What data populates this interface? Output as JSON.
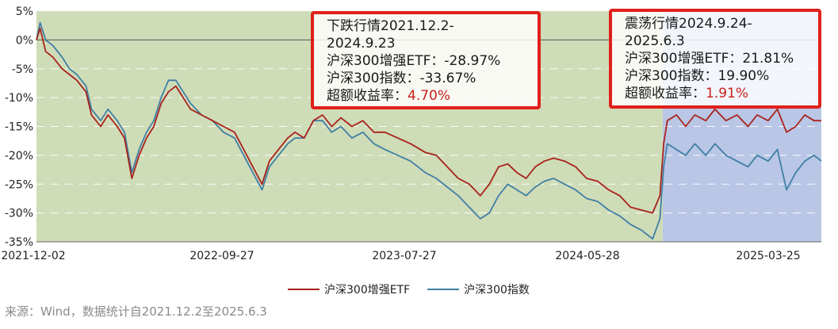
{
  "chart_data": {
    "type": "line",
    "x_tick_labels": [
      "2021-12-02",
      "2022-09-27",
      "2023-07-27",
      "2024-05-28",
      "2025-03-25"
    ],
    "y_tick_labels": [
      "5%",
      "0%",
      "-5%",
      "-10%",
      "-15%",
      "-20%",
      "-25%",
      "-30%",
      "-35%"
    ],
    "ylim": [
      -35,
      5
    ],
    "grid": true,
    "legend_placement": "bottom",
    "shaded_regions": [
      {
        "start": "2021-12-02",
        "end": "2024-09-23",
        "color": "#cfdcb8"
      },
      {
        "start": "2024-09-24",
        "end": "2025-06-03",
        "color": "#b9c6e6"
      }
    ],
    "series": [
      {
        "name": "沪深300增强ETF",
        "color": "#a8221b",
        "points": [
          [
            0,
            0
          ],
          [
            2,
            2
          ],
          [
            5,
            -2
          ],
          [
            9,
            -3
          ],
          [
            14,
            -5
          ],
          [
            18,
            -6
          ],
          [
            22,
            -7
          ],
          [
            27,
            -9
          ],
          [
            30,
            -13
          ],
          [
            35,
            -15
          ],
          [
            39,
            -13
          ],
          [
            44,
            -15
          ],
          [
            48,
            -17
          ],
          [
            52,
            -24
          ],
          [
            56,
            -20
          ],
          [
            60,
            -17
          ],
          [
            64,
            -15
          ],
          [
            68,
            -11
          ],
          [
            72,
            -9
          ],
          [
            76,
            -8
          ],
          [
            80,
            -10
          ],
          [
            84,
            -12
          ],
          [
            90,
            -13
          ],
          [
            96,
            -14
          ],
          [
            102,
            -15
          ],
          [
            108,
            -16
          ],
          [
            113,
            -19
          ],
          [
            118,
            -22
          ],
          [
            123,
            -25
          ],
          [
            127,
            -21
          ],
          [
            132,
            -19
          ],
          [
            137,
            -17
          ],
          [
            141,
            -16
          ],
          [
            146,
            -17
          ],
          [
            151,
            -14
          ],
          [
            156,
            -13
          ],
          [
            161,
            -15
          ],
          [
            166,
            -13.5
          ],
          [
            172,
            -15
          ],
          [
            178,
            -14
          ],
          [
            184,
            -16
          ],
          [
            190,
            -16
          ],
          [
            197,
            -17
          ],
          [
            204,
            -18
          ],
          [
            212,
            -19.5
          ],
          [
            218,
            -20
          ],
          [
            224,
            -22
          ],
          [
            230,
            -24
          ],
          [
            236,
            -25
          ],
          [
            242,
            -27
          ],
          [
            247,
            -25
          ],
          [
            252,
            -22
          ],
          [
            257,
            -21.5
          ],
          [
            262,
            -23
          ],
          [
            267,
            -24
          ],
          [
            272,
            -22
          ],
          [
            277,
            -21
          ],
          [
            282,
            -20.5
          ],
          [
            288,
            -21
          ],
          [
            294,
            -22
          ],
          [
            300,
            -24
          ],
          [
            306,
            -24.5
          ],
          [
            312,
            -26
          ],
          [
            318,
            -27
          ],
          [
            324,
            -29
          ],
          [
            330,
            -29.5
          ],
          [
            336,
            -30
          ],
          [
            340,
            -27
          ],
          [
            342,
            -18
          ],
          [
            344,
            -14
          ],
          [
            349,
            -13
          ],
          [
            354,
            -15
          ],
          [
            359,
            -13
          ],
          [
            365,
            -14
          ],
          [
            370,
            -12
          ],
          [
            376,
            -14
          ],
          [
            382,
            -13
          ],
          [
            388,
            -15
          ],
          [
            393,
            -13
          ],
          [
            399,
            -14
          ],
          [
            404,
            -12
          ],
          [
            409,
            -16
          ],
          [
            414,
            -15
          ],
          [
            419,
            -13
          ],
          [
            424,
            -14
          ],
          [
            428,
            -14
          ]
        ]
      },
      {
        "name": "沪深300指数",
        "color": "#3f7fa4",
        "points": [
          [
            0,
            0
          ],
          [
            2,
            3
          ],
          [
            5,
            0
          ],
          [
            9,
            -1
          ],
          [
            14,
            -3
          ],
          [
            18,
            -5
          ],
          [
            22,
            -6
          ],
          [
            27,
            -8
          ],
          [
            30,
            -12
          ],
          [
            35,
            -14
          ],
          [
            39,
            -12
          ],
          [
            44,
            -14
          ],
          [
            48,
            -16
          ],
          [
            52,
            -23
          ],
          [
            56,
            -19
          ],
          [
            60,
            -16
          ],
          [
            64,
            -14
          ],
          [
            68,
            -10
          ],
          [
            72,
            -7
          ],
          [
            76,
            -7
          ],
          [
            80,
            -9
          ],
          [
            84,
            -11
          ],
          [
            90,
            -13
          ],
          [
            96,
            -14
          ],
          [
            102,
            -16
          ],
          [
            108,
            -17
          ],
          [
            113,
            -20
          ],
          [
            118,
            -23
          ],
          [
            123,
            -26
          ],
          [
            127,
            -22
          ],
          [
            132,
            -20
          ],
          [
            137,
            -18
          ],
          [
            141,
            -17
          ],
          [
            146,
            -17
          ],
          [
            151,
            -14
          ],
          [
            156,
            -14
          ],
          [
            161,
            -16
          ],
          [
            166,
            -15
          ],
          [
            172,
            -17
          ],
          [
            178,
            -16
          ],
          [
            184,
            -18
          ],
          [
            190,
            -19
          ],
          [
            197,
            -20
          ],
          [
            204,
            -21
          ],
          [
            212,
            -23
          ],
          [
            218,
            -24
          ],
          [
            224,
            -25.5
          ],
          [
            230,
            -27
          ],
          [
            236,
            -29
          ],
          [
            242,
            -31
          ],
          [
            247,
            -30
          ],
          [
            252,
            -27
          ],
          [
            257,
            -25
          ],
          [
            262,
            -26
          ],
          [
            267,
            -27
          ],
          [
            272,
            -25.5
          ],
          [
            277,
            -24.5
          ],
          [
            282,
            -24
          ],
          [
            288,
            -25
          ],
          [
            294,
            -26
          ],
          [
            300,
            -27.5
          ],
          [
            306,
            -28
          ],
          [
            312,
            -29.5
          ],
          [
            318,
            -30.5
          ],
          [
            324,
            -32
          ],
          [
            330,
            -33
          ],
          [
            336,
            -34.5
          ],
          [
            340,
            -31
          ],
          [
            342,
            -22
          ],
          [
            344,
            -18
          ],
          [
            349,
            -19
          ],
          [
            354,
            -20
          ],
          [
            359,
            -18
          ],
          [
            365,
            -20
          ],
          [
            370,
            -18
          ],
          [
            376,
            -20
          ],
          [
            382,
            -21
          ],
          [
            388,
            -22
          ],
          [
            393,
            -20
          ],
          [
            399,
            -21
          ],
          [
            404,
            -19
          ],
          [
            409,
            -26
          ],
          [
            414,
            -23
          ],
          [
            419,
            -21
          ],
          [
            424,
            -20
          ],
          [
            428,
            -21
          ]
        ]
      }
    ]
  },
  "annotations": [
    {
      "title": "下跌行情2021.12.2-",
      "title2": "2024.9.23",
      "etf_label": "沪深300增强ETF：",
      "etf_value": "-28.97%",
      "index_label": "沪深300指数：",
      "index_value": "-33.67%",
      "excess_label": "超额收益率：",
      "excess_value": "4.70%"
    },
    {
      "title": "震荡行情2024.9.24-",
      "title2": "2025.6.3",
      "etf_label": "沪深300增强ETF：",
      "etf_value": "21.81%",
      "index_label": "沪深300指数：",
      "index_value": "19.90%",
      "excess_label": "超额收益率：",
      "excess_value": "1.91%"
    }
  ],
  "legend": [
    {
      "label": "沪深300增强ETF",
      "color": "#a8221b"
    },
    {
      "label": "沪深300指数",
      "color": "#3f7fa4"
    }
  ],
  "source_text": "来源：Wind，数据统计自2021.12.2至2025.6.3"
}
